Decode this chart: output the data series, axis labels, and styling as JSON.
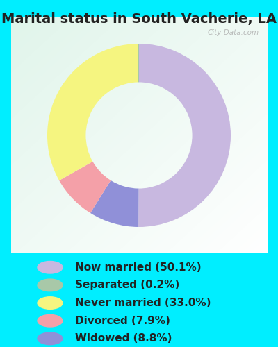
{
  "title": "Marital status in South Vacherie, LA",
  "slices": [
    50.1,
    0.2,
    33.0,
    7.9,
    8.8
  ],
  "labels": [
    "Now married (50.1%)",
    "Separated (0.2%)",
    "Never married (33.0%)",
    "Divorced (7.9%)",
    "Widowed (8.8%)"
  ],
  "colors": [
    "#c8b8e0",
    "#a8c8a8",
    "#f5f580",
    "#f4a0a8",
    "#9090d8"
  ],
  "outer_bg": "#00eeff",
  "chart_bg_topleft": "#e8f8f0",
  "chart_bg_center": "#ffffff",
  "title_fontsize": 14,
  "legend_fontsize": 11,
  "watermark": "City-Data.com",
  "donut_width": 0.42
}
